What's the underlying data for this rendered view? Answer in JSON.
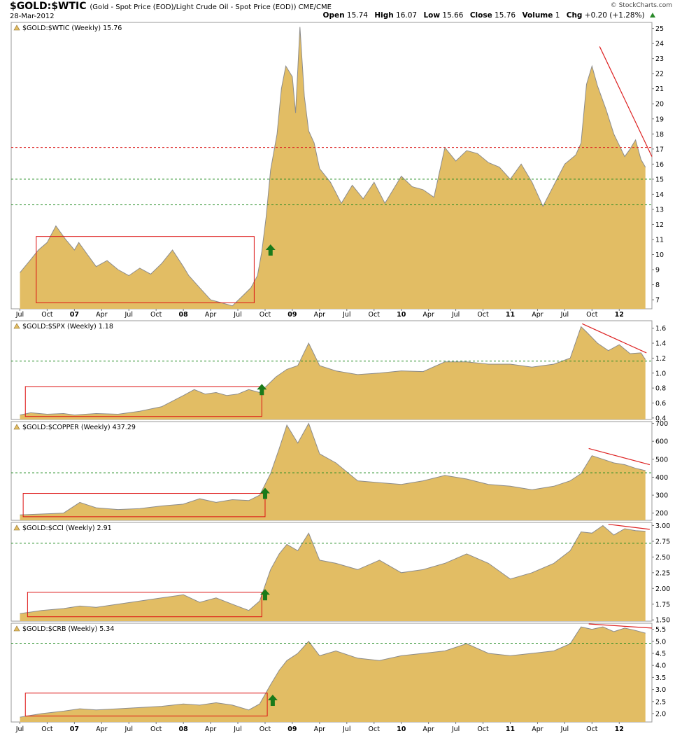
{
  "header": {
    "symbol": "$GOLD:$WTIC",
    "description": "(Gold - Spot Price (EOD)/Light Crude Oil - Spot Price (EOD)) CME/CME",
    "date": "28-Mar-2012",
    "open_label": "Open",
    "open": "15.74",
    "high_label": "High",
    "high": "16.07",
    "low_label": "Low",
    "low": "15.66",
    "close_label": "Close",
    "close": "15.76",
    "volume_label": "Volume",
    "volume": "1",
    "chg_label": "Chg",
    "chg": "+0.20 (+1.28%)",
    "logo": "© StockCharts.com"
  },
  "colors": {
    "area": "#e2bd64",
    "area_line": "#8c8c8c",
    "green_dash": "#1f8a1f",
    "red_dash": "#dd2222",
    "box": "#dd1111",
    "arrow": "#1a7a1a"
  },
  "chart_data": [
    {
      "type": "area",
      "title": "$GOLD:$WTIC (Weekly) 15.76",
      "ylim": [
        6.4,
        25.4
      ],
      "yticks": [
        7,
        8,
        9,
        10,
        11,
        12,
        13,
        14,
        15,
        16,
        17,
        18,
        19,
        20,
        21,
        22,
        23,
        24,
        25
      ],
      "hlines": [
        {
          "value": 17.1,
          "color": "red"
        },
        {
          "value": 15.0,
          "color": "green"
        },
        {
          "value": 13.3,
          "color": "green"
        }
      ],
      "x": [
        2006.5,
        2006.58,
        2006.67,
        2006.75,
        2006.83,
        2006.92,
        2007.0,
        2007.04,
        2007.12,
        2007.2,
        2007.3,
        2007.4,
        2007.5,
        2007.6,
        2007.7,
        2007.8,
        2007.9,
        2008.0,
        2008.05,
        2008.15,
        2008.25,
        2008.35,
        2008.45,
        2008.55,
        2008.62,
        2008.68,
        2008.72,
        2008.76,
        2008.8,
        2008.86,
        2008.9,
        2008.94,
        2009.0,
        2009.03,
        2009.07,
        2009.11,
        2009.15,
        2009.2,
        2009.25,
        2009.35,
        2009.45,
        2009.55,
        2009.65,
        2009.75,
        2009.85,
        2010.0,
        2010.1,
        2010.2,
        2010.3,
        2010.4,
        2010.5,
        2010.6,
        2010.7,
        2010.8,
        2010.9,
        2011.0,
        2011.1,
        2011.2,
        2011.3,
        2011.4,
        2011.45,
        2011.5,
        2011.6,
        2011.65,
        2011.7,
        2011.75,
        2011.8,
        2011.88,
        2011.95,
        2012.05,
        2012.1,
        2012.15,
        2012.2,
        2012.24
      ],
      "values": [
        8.8,
        9.5,
        10.3,
        10.8,
        11.9,
        11.0,
        10.3,
        10.8,
        10.0,
        9.2,
        9.6,
        9.0,
        8.6,
        9.1,
        8.7,
        9.4,
        10.3,
        9.2,
        8.6,
        7.8,
        7.0,
        6.8,
        6.6,
        7.3,
        7.8,
        8.6,
        10.2,
        12.5,
        15.6,
        18.0,
        21.0,
        22.5,
        21.8,
        19.4,
        25.1,
        20.5,
        18.2,
        17.4,
        15.7,
        14.8,
        13.4,
        14.6,
        13.7,
        14.8,
        13.4,
        15.2,
        14.5,
        14.3,
        13.8,
        17.1,
        16.2,
        16.9,
        16.7,
        16.1,
        15.8,
        15.0,
        16.0,
        14.8,
        13.2,
        14.6,
        15.3,
        16.0,
        16.6,
        17.4,
        21.3,
        22.5,
        21.2,
        19.6,
        18.0,
        16.5,
        17.0,
        17.6,
        16.3,
        15.8
      ],
      "xticks": [
        {
          "label": "Jul",
          "x": 2006.5
        },
        {
          "label": "Oct",
          "x": 2006.75
        },
        {
          "label": "07",
          "x": 2007.0,
          "bold": true
        },
        {
          "label": "Apr",
          "x": 2007.25
        },
        {
          "label": "Jul",
          "x": 2007.5
        },
        {
          "label": "Oct",
          "x": 2007.75
        },
        {
          "label": "08",
          "x": 2008.0,
          "bold": true
        },
        {
          "label": "Apr",
          "x": 2008.25
        },
        {
          "label": "Jul",
          "x": 2008.5
        },
        {
          "label": "Oct",
          "x": 2008.75
        },
        {
          "label": "09",
          "x": 2009.0,
          "bold": true
        },
        {
          "label": "Apr",
          "x": 2009.25
        },
        {
          "label": "Jul",
          "x": 2009.5
        },
        {
          "label": "Oct",
          "x": 2009.75
        },
        {
          "label": "10",
          "x": 2010.0,
          "bold": true
        },
        {
          "label": "Apr",
          "x": 2010.25
        },
        {
          "label": "Jul",
          "x": 2010.5
        },
        {
          "label": "Oct",
          "x": 2010.75
        },
        {
          "label": "11",
          "x": 2011.0,
          "bold": true
        },
        {
          "label": "Apr",
          "x": 2011.25
        },
        {
          "label": "Jul",
          "x": 2011.5
        },
        {
          "label": "Oct",
          "x": 2011.75
        },
        {
          "label": "12",
          "x": 2012.0,
          "bold": true
        }
      ],
      "box": {
        "x0": 2006.65,
        "x1": 2008.65,
        "y0": 6.8,
        "y1": 11.2
      },
      "arrow": {
        "x": 2008.8,
        "y": 10.3
      },
      "trend": {
        "x0": 2011.82,
        "y0": 23.8,
        "x1": 2012.3,
        "y1": 16.5
      }
    },
    {
      "type": "area",
      "title": "$GOLD:$SPX (Weekly) 1.18",
      "ylim": [
        0.38,
        1.7
      ],
      "yticks": [
        0.4,
        0.6,
        0.8,
        1.0,
        1.2,
        1.4,
        1.6
      ],
      "hlines": [
        {
          "value": 1.16,
          "color": "green"
        }
      ],
      "x": [
        2006.5,
        2006.6,
        2006.75,
        2006.9,
        2007.0,
        2007.2,
        2007.4,
        2007.6,
        2007.8,
        2008.0,
        2008.1,
        2008.2,
        2008.3,
        2008.4,
        2008.5,
        2008.6,
        2008.7,
        2008.78,
        2008.85,
        2008.95,
        2009.05,
        2009.15,
        2009.25,
        2009.4,
        2009.6,
        2009.8,
        2010.0,
        2010.2,
        2010.4,
        2010.6,
        2010.8,
        2011.0,
        2011.2,
        2011.4,
        2011.55,
        2011.65,
        2011.7,
        2011.8,
        2011.9,
        2012.0,
        2012.1,
        2012.2,
        2012.24
      ],
      "values": [
        0.44,
        0.47,
        0.45,
        0.46,
        0.44,
        0.46,
        0.45,
        0.49,
        0.55,
        0.7,
        0.78,
        0.72,
        0.74,
        0.7,
        0.72,
        0.78,
        0.74,
        0.85,
        0.95,
        1.05,
        1.1,
        1.4,
        1.1,
        1.03,
        0.98,
        1.0,
        1.03,
        1.02,
        1.15,
        1.15,
        1.12,
        1.12,
        1.08,
        1.12,
        1.2,
        1.62,
        1.55,
        1.4,
        1.3,
        1.38,
        1.26,
        1.27,
        1.18
      ],
      "box": {
        "x0": 2006.55,
        "x1": 2008.72,
        "y0": 0.42,
        "y1": 0.82
      },
      "arrow": {
        "x": 2008.72,
        "y": 0.78
      },
      "trend": {
        "x0": 2011.66,
        "y0": 1.66,
        "x1": 2012.25,
        "y1": 1.27
      }
    },
    {
      "type": "area",
      "title": "$GOLD:$COPPER (Weekly) 437.29",
      "ylim": [
        160,
        710
      ],
      "yticks": [
        200,
        300,
        400,
        500,
        600,
        700
      ],
      "hlines": [
        {
          "value": 425,
          "color": "green"
        }
      ],
      "x": [
        2006.5,
        2006.7,
        2006.9,
        2007.05,
        2007.2,
        2007.4,
        2007.6,
        2007.8,
        2008.0,
        2008.15,
        2008.3,
        2008.45,
        2008.6,
        2008.7,
        2008.8,
        2008.88,
        2008.95,
        2009.05,
        2009.15,
        2009.25,
        2009.4,
        2009.6,
        2009.8,
        2010.0,
        2010.2,
        2010.4,
        2010.6,
        2010.8,
        2011.0,
        2011.2,
        2011.4,
        2011.55,
        2011.65,
        2011.75,
        2011.85,
        2011.95,
        2012.05,
        2012.15,
        2012.24
      ],
      "values": [
        190,
        195,
        200,
        260,
        230,
        220,
        225,
        240,
        250,
        280,
        260,
        275,
        270,
        300,
        420,
        560,
        690,
        590,
        700,
        530,
        480,
        380,
        370,
        360,
        380,
        410,
        390,
        360,
        350,
        330,
        350,
        380,
        420,
        520,
        500,
        480,
        470,
        450,
        437
      ],
      "box": {
        "x0": 2006.53,
        "x1": 2008.75,
        "y0": 180,
        "y1": 310
      },
      "arrow": {
        "x": 2008.75,
        "y": 310
      },
      "trend": {
        "x0": 2011.72,
        "y0": 560,
        "x1": 2012.28,
        "y1": 470
      }
    },
    {
      "type": "area",
      "title": "$GOLD:$CCI (Weekly) 2.91",
      "ylim": [
        1.48,
        3.05
      ],
      "yticks": [
        1.5,
        1.75,
        2.0,
        2.25,
        2.5,
        2.75,
        3.0
      ],
      "hlines": [
        {
          "value": 2.72,
          "color": "green"
        }
      ],
      "x": [
        2006.5,
        2006.7,
        2006.9,
        2007.05,
        2007.2,
        2007.4,
        2007.6,
        2007.8,
        2008.0,
        2008.15,
        2008.3,
        2008.45,
        2008.6,
        2008.7,
        2008.8,
        2008.88,
        2008.95,
        2009.05,
        2009.15,
        2009.25,
        2009.4,
        2009.6,
        2009.8,
        2010.0,
        2010.2,
        2010.4,
        2010.6,
        2010.8,
        2011.0,
        2011.2,
        2011.4,
        2011.55,
        2011.65,
        2011.75,
        2011.85,
        2011.95,
        2012.05,
        2012.15,
        2012.24
      ],
      "values": [
        1.6,
        1.65,
        1.68,
        1.72,
        1.7,
        1.75,
        1.8,
        1.85,
        1.9,
        1.78,
        1.85,
        1.75,
        1.65,
        1.8,
        2.3,
        2.55,
        2.7,
        2.6,
        2.88,
        2.45,
        2.4,
        2.3,
        2.45,
        2.25,
        2.3,
        2.4,
        2.55,
        2.4,
        2.15,
        2.25,
        2.4,
        2.6,
        2.9,
        2.88,
        3.0,
        2.85,
        2.95,
        2.92,
        2.91
      ],
      "box": {
        "x0": 2006.57,
        "x1": 2008.72,
        "y0": 1.55,
        "y1": 1.94
      },
      "arrow": {
        "x": 2008.75,
        "y": 1.9
      },
      "trend": {
        "x0": 2011.9,
        "y0": 3.02,
        "x1": 2012.28,
        "y1": 2.94
      }
    },
    {
      "type": "area",
      "title": "$GOLD:$CRB (Weekly) 5.34",
      "ylim": [
        1.65,
        5.75
      ],
      "yticks": [
        2.0,
        2.5,
        3.0,
        3.5,
        4.0,
        4.5,
        5.0,
        5.5
      ],
      "hlines": [
        {
          "value": 4.92,
          "color": "green"
        }
      ],
      "x": [
        2006.5,
        2006.7,
        2006.9,
        2007.05,
        2007.2,
        2007.4,
        2007.6,
        2007.8,
        2008.0,
        2008.15,
        2008.3,
        2008.45,
        2008.6,
        2008.7,
        2008.8,
        2008.88,
        2008.95,
        2009.05,
        2009.15,
        2009.25,
        2009.4,
        2009.6,
        2009.8,
        2010.0,
        2010.2,
        2010.4,
        2010.6,
        2010.8,
        2011.0,
        2011.2,
        2011.4,
        2011.55,
        2011.65,
        2011.75,
        2011.85,
        2011.95,
        2012.05,
        2012.15,
        2012.24
      ],
      "values": [
        1.85,
        2.0,
        2.1,
        2.2,
        2.15,
        2.2,
        2.25,
        2.3,
        2.4,
        2.35,
        2.45,
        2.35,
        2.15,
        2.4,
        3.2,
        3.8,
        4.2,
        4.5,
        5.0,
        4.4,
        4.6,
        4.3,
        4.2,
        4.4,
        4.5,
        4.6,
        4.9,
        4.5,
        4.4,
        4.5,
        4.6,
        4.9,
        5.6,
        5.5,
        5.6,
        5.4,
        5.55,
        5.45,
        5.34
      ],
      "xticks": [
        {
          "label": "Jul",
          "x": 2006.5
        },
        {
          "label": "Oct",
          "x": 2006.75
        },
        {
          "label": "07",
          "x": 2007.0,
          "bold": true
        },
        {
          "label": "Apr",
          "x": 2007.25
        },
        {
          "label": "Jul",
          "x": 2007.5
        },
        {
          "label": "Oct",
          "x": 2007.75
        },
        {
          "label": "08",
          "x": 2008.0,
          "bold": true
        },
        {
          "label": "Apr",
          "x": 2008.25
        },
        {
          "label": "Jul",
          "x": 2008.5
        },
        {
          "label": "Oct",
          "x": 2008.75
        },
        {
          "label": "09",
          "x": 2009.0,
          "bold": true
        },
        {
          "label": "Apr",
          "x": 2009.25
        },
        {
          "label": "Jul",
          "x": 2009.5
        },
        {
          "label": "Oct",
          "x": 2009.75
        },
        {
          "label": "10",
          "x": 2010.0,
          "bold": true
        },
        {
          "label": "Apr",
          "x": 2010.25
        },
        {
          "label": "Jul",
          "x": 2010.5
        },
        {
          "label": "Oct",
          "x": 2010.75
        },
        {
          "label": "11",
          "x": 2011.0,
          "bold": true
        },
        {
          "label": "Apr",
          "x": 2011.25
        },
        {
          "label": "Jul",
          "x": 2011.5
        },
        {
          "label": "Oct",
          "x": 2011.75
        },
        {
          "label": "12",
          "x": 2012.0,
          "bold": true
        }
      ],
      "box": {
        "x0": 2006.55,
        "x1": 2008.77,
        "y0": 1.9,
        "y1": 2.85
      },
      "arrow": {
        "x": 2008.82,
        "y": 2.55
      },
      "trend": {
        "x0": 2011.72,
        "y0": 5.72,
        "x1": 2012.3,
        "y1": 5.55
      }
    }
  ]
}
